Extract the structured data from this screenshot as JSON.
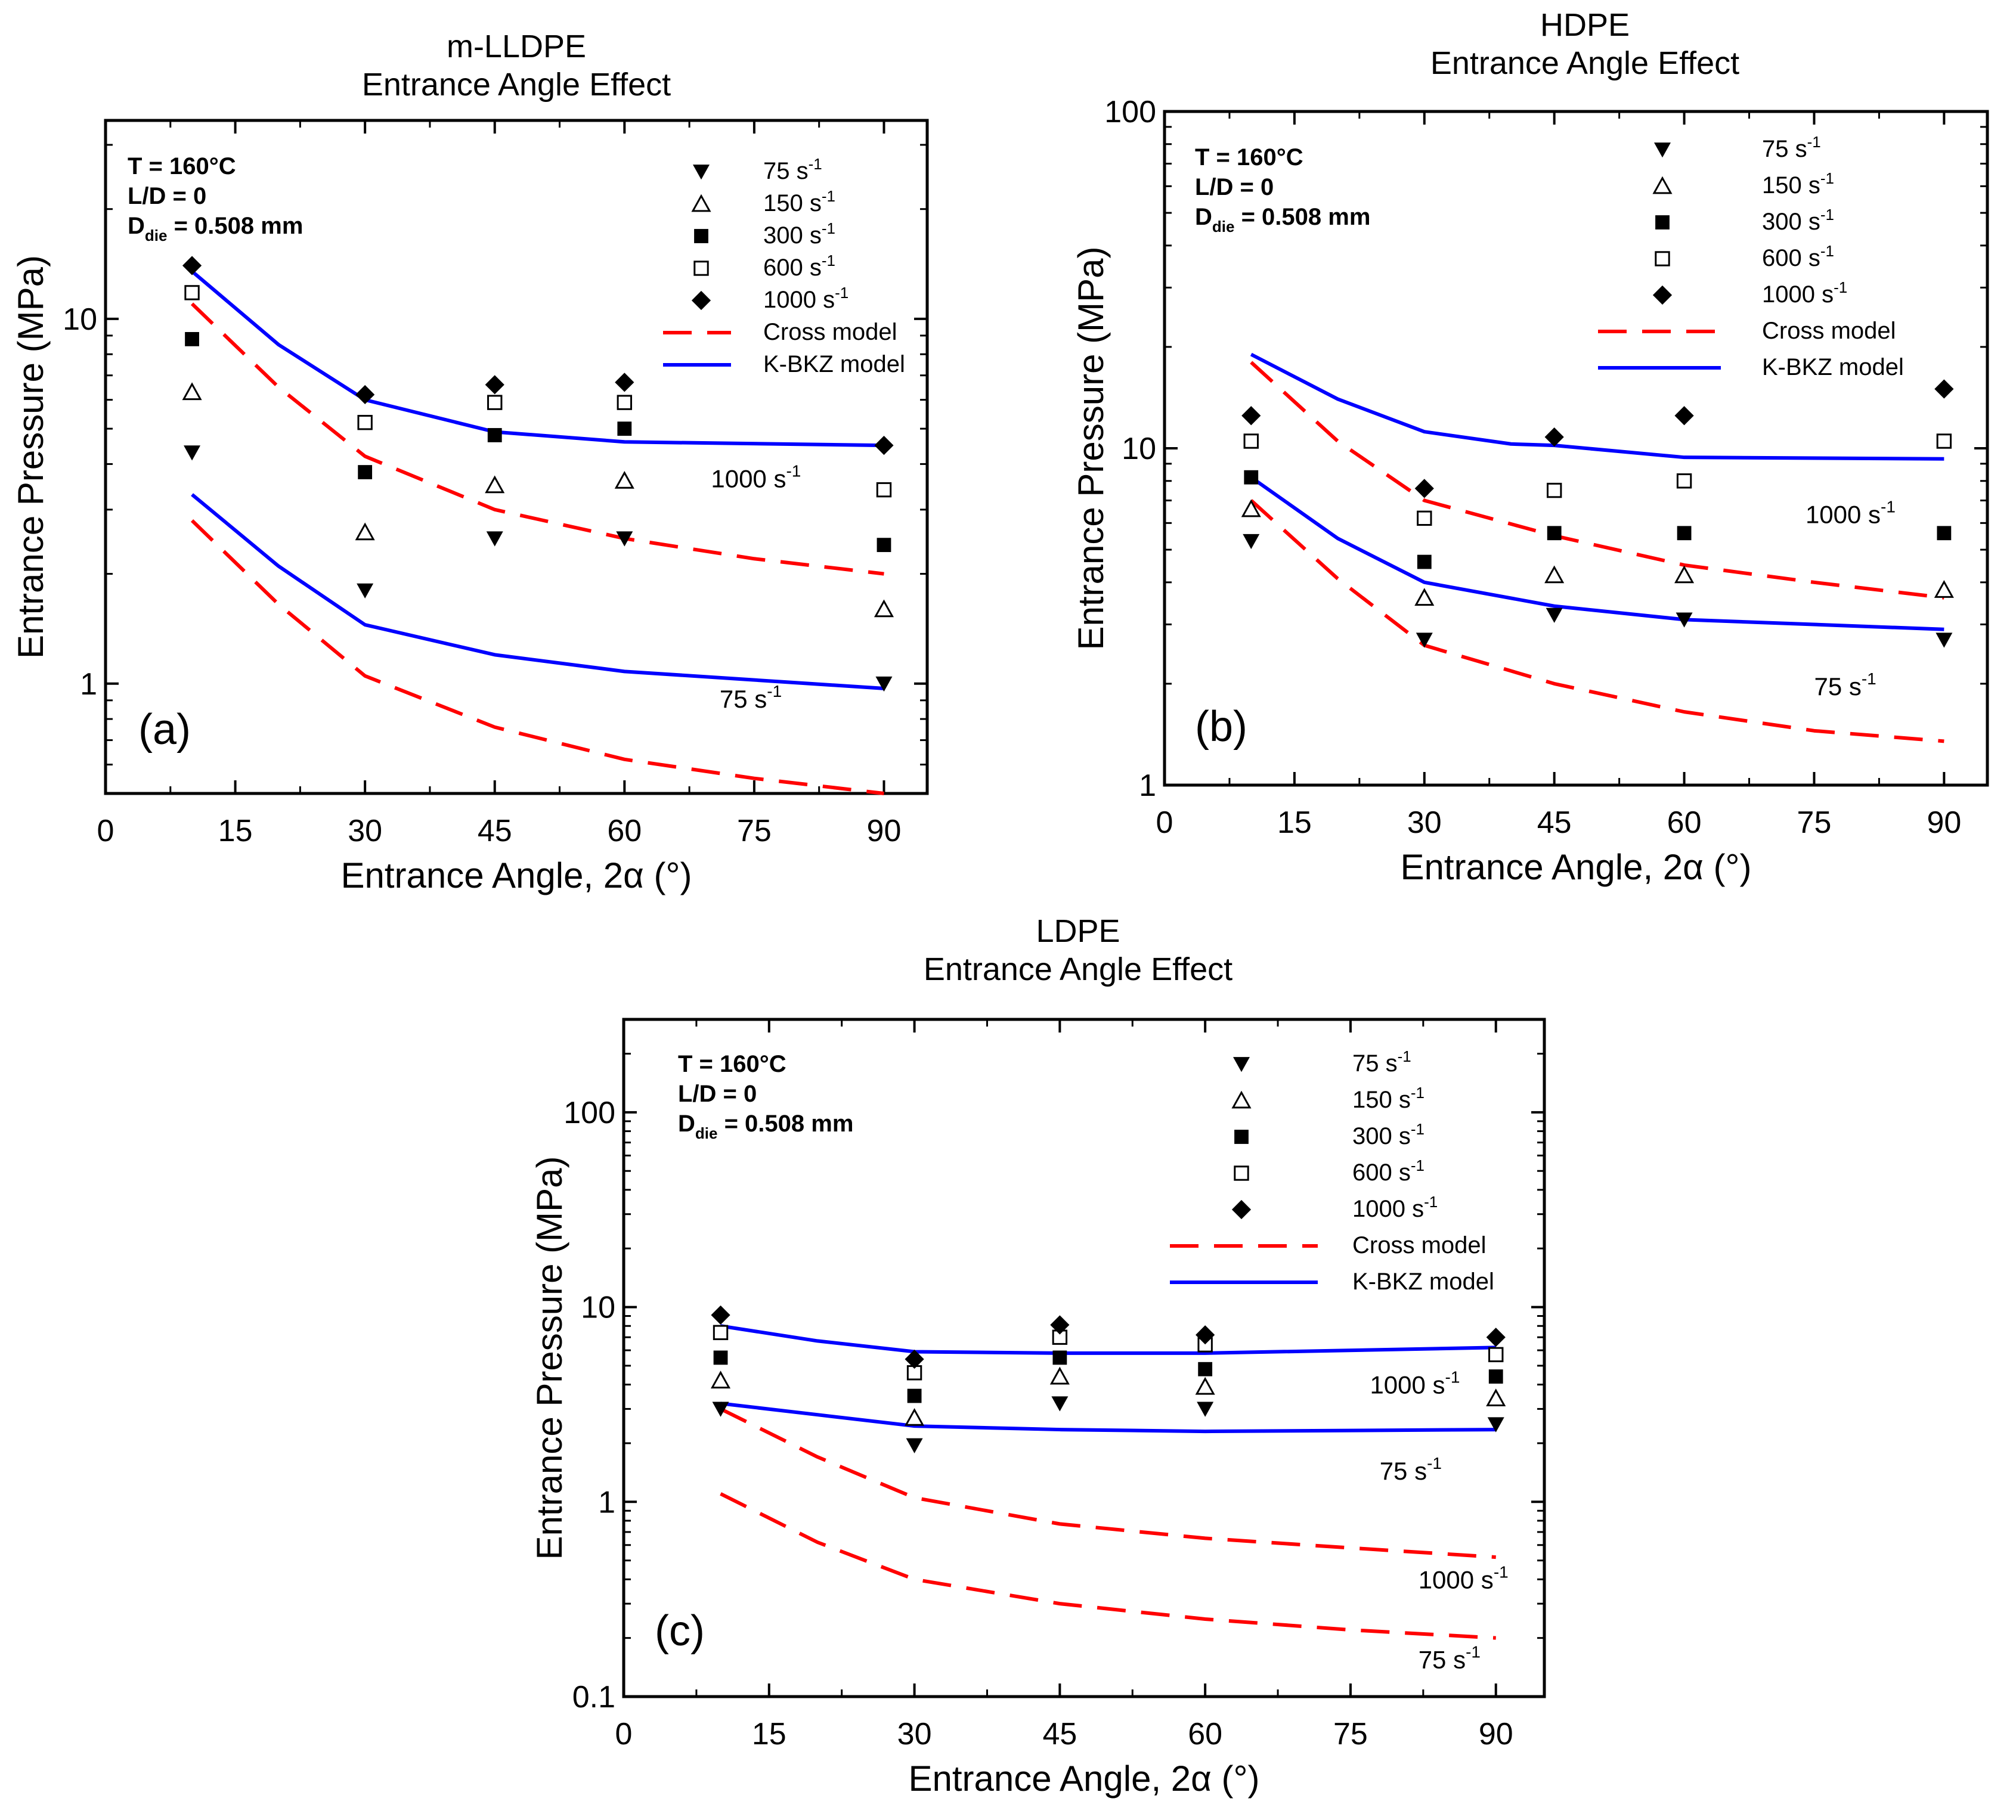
{
  "conditions": {
    "temperature": "T = 160°C",
    "ld": "L/D = 0",
    "ddie_prefix": "D",
    "ddie_sub": "die",
    "ddie_value": " = 0.508 mm"
  },
  "legend": {
    "marker_items": [
      {
        "marker": "down-triangle-filled",
        "label": "75 s",
        "sup": "-1"
      },
      {
        "marker": "triangle-open",
        "label": "150 s",
        "sup": "-1"
      },
      {
        "marker": "square-filled",
        "label": "300 s",
        "sup": "-1"
      },
      {
        "marker": "square-open",
        "label": "600 s",
        "sup": "-1"
      },
      {
        "marker": "diamond-filled",
        "label": "1000 s",
        "sup": "-1"
      }
    ],
    "line_items": [
      {
        "style": "dashed",
        "color": "#ff0000",
        "label": "Cross model"
      },
      {
        "style": "solid",
        "color": "#0000ff",
        "label": "K-BKZ model"
      }
    ]
  },
  "colors": {
    "cross": "#ff0000",
    "kbkz": "#0000ff"
  },
  "chart_data": [
    {
      "id": "a",
      "type": "scatter",
      "panel_label": "(a)",
      "title": "m-LLDPE",
      "subtitle": "Entrance Angle Effect",
      "xlabel": "Entrance Angle, 2α (°)",
      "ylabel": "Entrance Pressure (MPa)",
      "yscale": "log",
      "xlim": [
        0,
        95
      ],
      "ylim": [
        0.5,
        35
      ],
      "xticks": [
        0,
        15,
        30,
        45,
        60,
        75,
        90
      ],
      "yticks": [
        1,
        10
      ],
      "ytick_labels": [
        "1",
        "10"
      ],
      "x": [
        10,
        30,
        45,
        60,
        90
      ],
      "series": [
        {
          "name": "75 s-1",
          "marker": "down-triangle-filled",
          "values": [
            4.3,
            1.8,
            2.5,
            2.5,
            1.0
          ]
        },
        {
          "name": "150 s-1",
          "marker": "triangle-open",
          "values": [
            6.3,
            2.6,
            3.5,
            3.6,
            1.6
          ]
        },
        {
          "name": "300 s-1",
          "marker": "square-filled",
          "values": [
            8.8,
            3.8,
            4.8,
            5.0,
            2.4
          ]
        },
        {
          "name": "600 s-1",
          "marker": "square-open",
          "values": [
            11.8,
            5.2,
            5.9,
            5.9,
            3.4
          ]
        },
        {
          "name": "1000 s-1",
          "marker": "diamond-filled",
          "values": [
            14.0,
            6.2,
            6.6,
            6.7,
            4.5
          ]
        }
      ],
      "model_lines": [
        {
          "model": "K-BKZ",
          "rate": "1000",
          "x": [
            10,
            20,
            30,
            45,
            60,
            90
          ],
          "values": [
            13.5,
            8.5,
            6.0,
            4.9,
            4.6,
            4.5
          ]
        },
        {
          "model": "Cross",
          "rate": "1000",
          "x": [
            10,
            20,
            30,
            45,
            60,
            75,
            90
          ],
          "values": [
            11.0,
            6.5,
            4.2,
            3.0,
            2.5,
            2.2,
            2.0
          ]
        },
        {
          "model": "K-BKZ",
          "rate": "75",
          "x": [
            10,
            20,
            30,
            45,
            60,
            90
          ],
          "values": [
            3.3,
            2.1,
            1.45,
            1.2,
            1.08,
            0.97
          ]
        },
        {
          "model": "Cross",
          "rate": "75",
          "x": [
            10,
            20,
            30,
            45,
            60,
            75,
            90
          ],
          "values": [
            2.8,
            1.65,
            1.05,
            0.76,
            0.62,
            0.55,
            0.5
          ]
        }
      ],
      "annotations": [
        {
          "text": "1000 s",
          "sup": "-1",
          "x": 70,
          "y": 3.45
        },
        {
          "text": "75 s",
          "sup": "-1",
          "x": 71,
          "y": 0.86
        }
      ]
    },
    {
      "id": "b",
      "type": "scatter",
      "panel_label": "(b)",
      "title": "HDPE",
      "subtitle": "Entrance Angle Effect",
      "xlabel": "Entrance Angle, 2α (°)",
      "ylabel": "Entrance Pressure (MPa)",
      "yscale": "log",
      "xlim": [
        0,
        95
      ],
      "ylim": [
        1,
        100
      ],
      "xticks": [
        0,
        15,
        30,
        45,
        60,
        75,
        90
      ],
      "yticks": [
        1,
        10,
        100
      ],
      "ytick_labels": [
        "1",
        "10",
        "100"
      ],
      "x": [
        10,
        30,
        45,
        60,
        90
      ],
      "series": [
        {
          "name": "75 s-1",
          "marker": "down-triangle-filled",
          "values": [
            5.3,
            2.7,
            3.2,
            3.1,
            2.7
          ]
        },
        {
          "name": "150 s-1",
          "marker": "triangle-open",
          "values": [
            6.6,
            3.6,
            4.2,
            4.2,
            3.8
          ]
        },
        {
          "name": "300 s-1",
          "marker": "square-filled",
          "values": [
            8.2,
            4.6,
            5.6,
            5.6,
            5.6
          ]
        },
        {
          "name": "600 s-1",
          "marker": "square-open",
          "values": [
            10.5,
            6.2,
            7.5,
            8.0,
            10.5
          ]
        },
        {
          "name": "1000 s-1",
          "marker": "diamond-filled",
          "values": [
            12.5,
            7.6,
            10.8,
            12.5,
            15.0
          ]
        }
      ],
      "model_lines": [
        {
          "model": "K-BKZ",
          "rate": "1000",
          "x": [
            10,
            20,
            30,
            40,
            45,
            60,
            90
          ],
          "values": [
            19.0,
            14.0,
            11.2,
            10.3,
            10.2,
            9.4,
            9.3
          ]
        },
        {
          "model": "Cross",
          "rate": "1000",
          "x": [
            10,
            20,
            30,
            45,
            60,
            75,
            90
          ],
          "values": [
            18.0,
            10.5,
            7.0,
            5.5,
            4.5,
            4.0,
            3.6
          ]
        },
        {
          "model": "K-BKZ",
          "rate": "75",
          "x": [
            10,
            20,
            30,
            45,
            60,
            90
          ],
          "values": [
            8.2,
            5.4,
            4.0,
            3.4,
            3.1,
            2.9
          ]
        },
        {
          "model": "Cross",
          "rate": "75",
          "x": [
            10,
            20,
            30,
            45,
            60,
            75,
            90
          ],
          "values": [
            7.0,
            4.1,
            2.6,
            2.0,
            1.65,
            1.45,
            1.35
          ]
        }
      ],
      "annotations": [
        {
          "text": "1000 s",
          "sup": "-1",
          "x": 74,
          "y": 6.0
        },
        {
          "text": "75 s",
          "sup": "-1",
          "x": 75,
          "y": 1.85
        }
      ]
    },
    {
      "id": "c",
      "type": "scatter",
      "panel_label": "(c)",
      "title": "LDPE",
      "subtitle": "Entrance Angle Effect",
      "xlabel": "Entrance Angle, 2α (°)",
      "ylabel": "Entrance Pressure (MPa)",
      "yscale": "log",
      "xlim": [
        0,
        95
      ],
      "ylim": [
        0.1,
        300
      ],
      "xticks": [
        0,
        15,
        30,
        45,
        60,
        75,
        90
      ],
      "yticks": [
        0.1,
        1,
        10,
        100
      ],
      "ytick_labels": [
        "0.1",
        "1",
        "10",
        "100"
      ],
      "x": [
        10,
        30,
        45,
        60,
        90
      ],
      "series": [
        {
          "name": "75 s-1",
          "marker": "down-triangle-filled",
          "values": [
            3.0,
            1.95,
            3.2,
            3.0,
            2.5
          ]
        },
        {
          "name": "150 s-1",
          "marker": "triangle-open",
          "values": [
            4.2,
            2.7,
            4.4,
            3.9,
            3.4
          ]
        },
        {
          "name": "300 s-1",
          "marker": "square-filled",
          "values": [
            5.5,
            3.5,
            5.5,
            4.8,
            4.4
          ]
        },
        {
          "name": "600 s-1",
          "marker": "square-open",
          "values": [
            7.4,
            4.6,
            7.0,
            6.4,
            5.7
          ]
        },
        {
          "name": "1000 s-1",
          "marker": "diamond-filled",
          "values": [
            9.1,
            5.4,
            8.1,
            7.2,
            7.0
          ]
        }
      ],
      "model_lines": [
        {
          "model": "K-BKZ",
          "rate": "1000",
          "x": [
            10,
            20,
            30,
            45,
            60,
            90
          ],
          "values": [
            8.0,
            6.7,
            5.9,
            5.8,
            5.8,
            6.2
          ]
        },
        {
          "model": "K-BKZ",
          "rate": "75",
          "x": [
            10,
            20,
            30,
            45,
            60,
            90
          ],
          "values": [
            3.2,
            2.8,
            2.45,
            2.35,
            2.3,
            2.35
          ]
        },
        {
          "model": "Cross",
          "rate": "1000",
          "x": [
            10,
            20,
            30,
            45,
            60,
            75,
            90
          ],
          "values": [
            3.0,
            1.7,
            1.05,
            0.77,
            0.65,
            0.58,
            0.52
          ]
        },
        {
          "model": "Cross",
          "rate": "75",
          "x": [
            10,
            20,
            30,
            45,
            60,
            75,
            90
          ],
          "values": [
            1.1,
            0.62,
            0.4,
            0.3,
            0.25,
            0.22,
            0.2
          ]
        }
      ],
      "annotations": [
        {
          "text": "1000 s",
          "sup": "-1",
          "x": 77,
          "y": 3.6
        },
        {
          "text": "75 s",
          "sup": "-1",
          "x": 78,
          "y": 1.3
        },
        {
          "text": "1000 s",
          "sup": "-1",
          "x": 82,
          "y": 0.36
        },
        {
          "text": "75 s",
          "sup": "-1",
          "x": 82,
          "y": 0.14
        }
      ]
    }
  ]
}
